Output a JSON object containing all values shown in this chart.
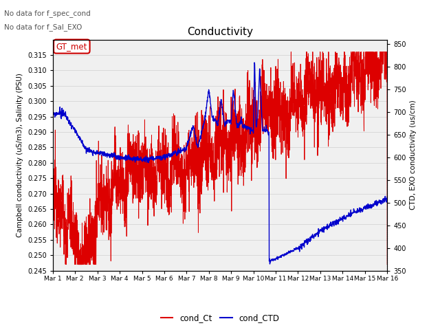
{
  "title": "Conductivity",
  "ylabel_left": "Campbell conductivity (uS/m3), Salinity (PSU)",
  "ylabel_right": "CTD, EXO conductivity (us/cm)",
  "ylim_left": [
    0.245,
    0.32
  ],
  "ylim_right": [
    350,
    860
  ],
  "yticks_left": [
    0.245,
    0.25,
    0.255,
    0.26,
    0.265,
    0.27,
    0.275,
    0.28,
    0.285,
    0.29,
    0.295,
    0.3,
    0.305,
    0.31,
    0.315
  ],
  "yticks_right": [
    350,
    400,
    450,
    500,
    550,
    600,
    650,
    700,
    750,
    800,
    850
  ],
  "xtick_labels": [
    "Mar 1",
    "Mar 2",
    "Mar 3",
    "Mar 4",
    "Mar 5",
    "Mar 6",
    "Mar 7",
    "Mar 8",
    "Mar 9",
    "Mar 10",
    "Mar 11",
    "Mar 12",
    "Mar 13",
    "Mar 14",
    "Mar 15",
    "Mar 16"
  ],
  "color_red": "#dd0000",
  "color_blue": "#0000cc",
  "legend_label_red": "cond_Ct",
  "legend_label_blue": "cond_CTD",
  "nodata_text1": "No data for f_spec_cond",
  "nodata_text2": "No data for f_Sal_EXO",
  "box_label": "GT_met",
  "box_color": "#cc0000",
  "box_bg": "#ffffff"
}
